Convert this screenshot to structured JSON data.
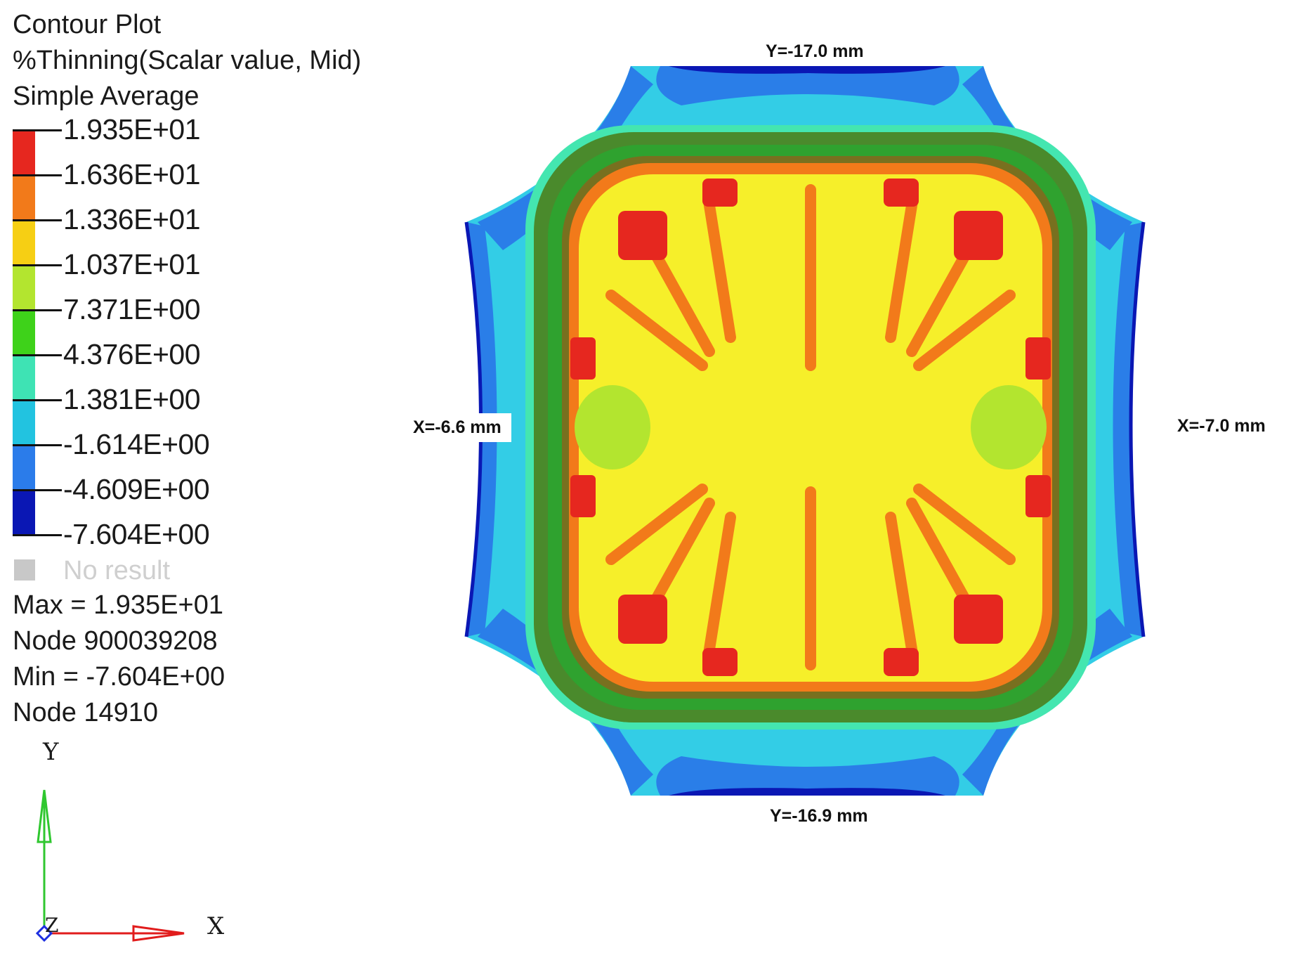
{
  "legend": {
    "title": "Contour Plot",
    "result_type": "%Thinning(Scalar value, Mid)",
    "averaging": "Simple Average",
    "levels": [
      "1.935E+01",
      "1.636E+01",
      "1.336E+01",
      "1.037E+01",
      "7.371E+00",
      "4.376E+00",
      "1.381E+00",
      "-1.614E+00",
      "-4.609E+00",
      "-7.604E+00"
    ],
    "band_colors": [
      "#e6271f",
      "#f27a1a",
      "#f6cf14",
      "#b3e52f",
      "#3ed21a",
      "#3ee3b4",
      "#22c3e0",
      "#2b7cea",
      "#0a17b4"
    ],
    "no_result_label": "No result",
    "no_result_color": "#c8c8c8"
  },
  "stats": {
    "max": "Max = 1.935E+01",
    "max_node": "Node 900039208",
    "min": "Min = -7.604E+00",
    "min_node": "Node 14910"
  },
  "triad": {
    "y": "Y",
    "x": "X",
    "z": "Z"
  },
  "dimensions": {
    "top": "Y=-17.0 mm",
    "bottom": "Y=-16.9 mm",
    "left": "X=-6.6 mm",
    "right": "X=-7.0 mm"
  }
}
